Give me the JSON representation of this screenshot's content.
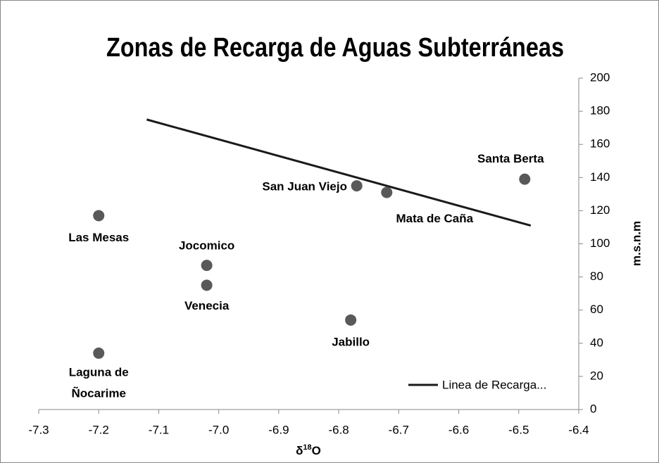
{
  "chart_data": {
    "type": "scatter",
    "title": "Zonas de Recarga de Aguas Subterráneas",
    "xlabel_parts": [
      "δ",
      "18",
      "O"
    ],
    "ylabel": "m.s.n.m",
    "x": [
      -7.2,
      -7.2,
      -7.02,
      -7.02,
      -6.78,
      -6.77,
      -6.72,
      -6.49
    ],
    "values": [
      117,
      34,
      87,
      75,
      54,
      135,
      131,
      139
    ],
    "labels": [
      "Las Mesas",
      [
        "Laguna de",
        "Ñocarime"
      ],
      "Jocomico",
      "Venecia",
      "Jabillo",
      "San Juan Viejo",
      "Mata de Caña",
      "Santa Berta"
    ],
    "color": "#595959",
    "line": {
      "name": "Linea de Recarga...",
      "x": [
        -7.12,
        -6.48
      ],
      "values": [
        175,
        111
      ],
      "color": "#1a1a1a"
    },
    "xlim": [
      -7.3,
      -6.4
    ],
    "xticks": [
      -7.3,
      -7.2,
      -7.1,
      {
        "value": -7.0,
        "label": "-7.0"
      },
      -6.9,
      -6.8,
      -6.7,
      -6.6,
      -6.5,
      -6.4
    ],
    "ylim": [
      0,
      200
    ],
    "yticks": [
      0,
      20,
      40,
      60,
      80,
      100,
      120,
      140,
      160,
      180,
      200
    ],
    "legend": "lower right"
  }
}
